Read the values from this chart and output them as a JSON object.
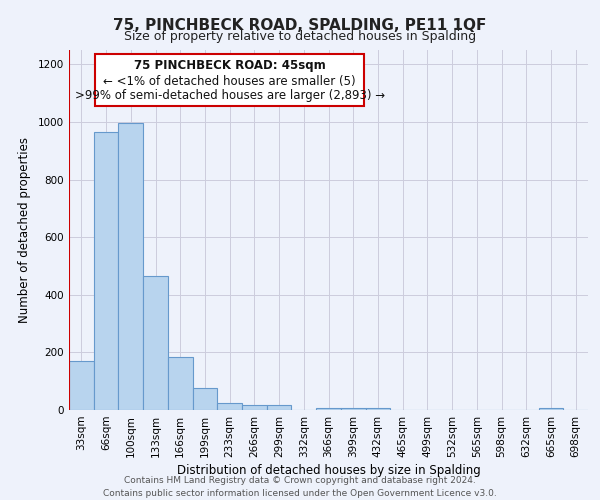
{
  "title": "75, PINCHBECK ROAD, SPALDING, PE11 1QF",
  "subtitle": "Size of property relative to detached houses in Spalding",
  "xlabel": "Distribution of detached houses by size in Spalding",
  "ylabel": "Number of detached properties",
  "bar_labels": [
    "33sqm",
    "66sqm",
    "100sqm",
    "133sqm",
    "166sqm",
    "199sqm",
    "233sqm",
    "266sqm",
    "299sqm",
    "332sqm",
    "366sqm",
    "399sqm",
    "432sqm",
    "465sqm",
    "499sqm",
    "532sqm",
    "565sqm",
    "598sqm",
    "632sqm",
    "665sqm",
    "698sqm"
  ],
  "bar_values": [
    170,
    965,
    995,
    465,
    185,
    75,
    25,
    18,
    18,
    0,
    8,
    8,
    8,
    0,
    0,
    0,
    0,
    0,
    0,
    8,
    0
  ],
  "bar_color": "#b8d4ee",
  "bar_edge_color": "#6699cc",
  "ylim": [
    0,
    1250
  ],
  "yticks": [
    0,
    200,
    400,
    600,
    800,
    1000,
    1200
  ],
  "annotation_box_text_line1": "75 PINCHBECK ROAD: 45sqm",
  "annotation_box_text_line2": "← <1% of detached houses are smaller (5)",
  "annotation_box_text_line3": ">99% of semi-detached houses are larger (2,893) →",
  "annotation_box_color": "#ffffff",
  "annotation_box_edge_color": "#cc0000",
  "marker_line_color": "#cc0000",
  "footer_line1": "Contains HM Land Registry data © Crown copyright and database right 2024.",
  "footer_line2": "Contains public sector information licensed under the Open Government Licence v3.0.",
  "background_color": "#eef2fb",
  "grid_color": "#ccccdd",
  "title_fontsize": 11,
  "subtitle_fontsize": 9,
  "axis_label_fontsize": 8.5,
  "tick_fontsize": 7.5,
  "annotation_fontsize": 8.5,
  "footer_fontsize": 6.5
}
